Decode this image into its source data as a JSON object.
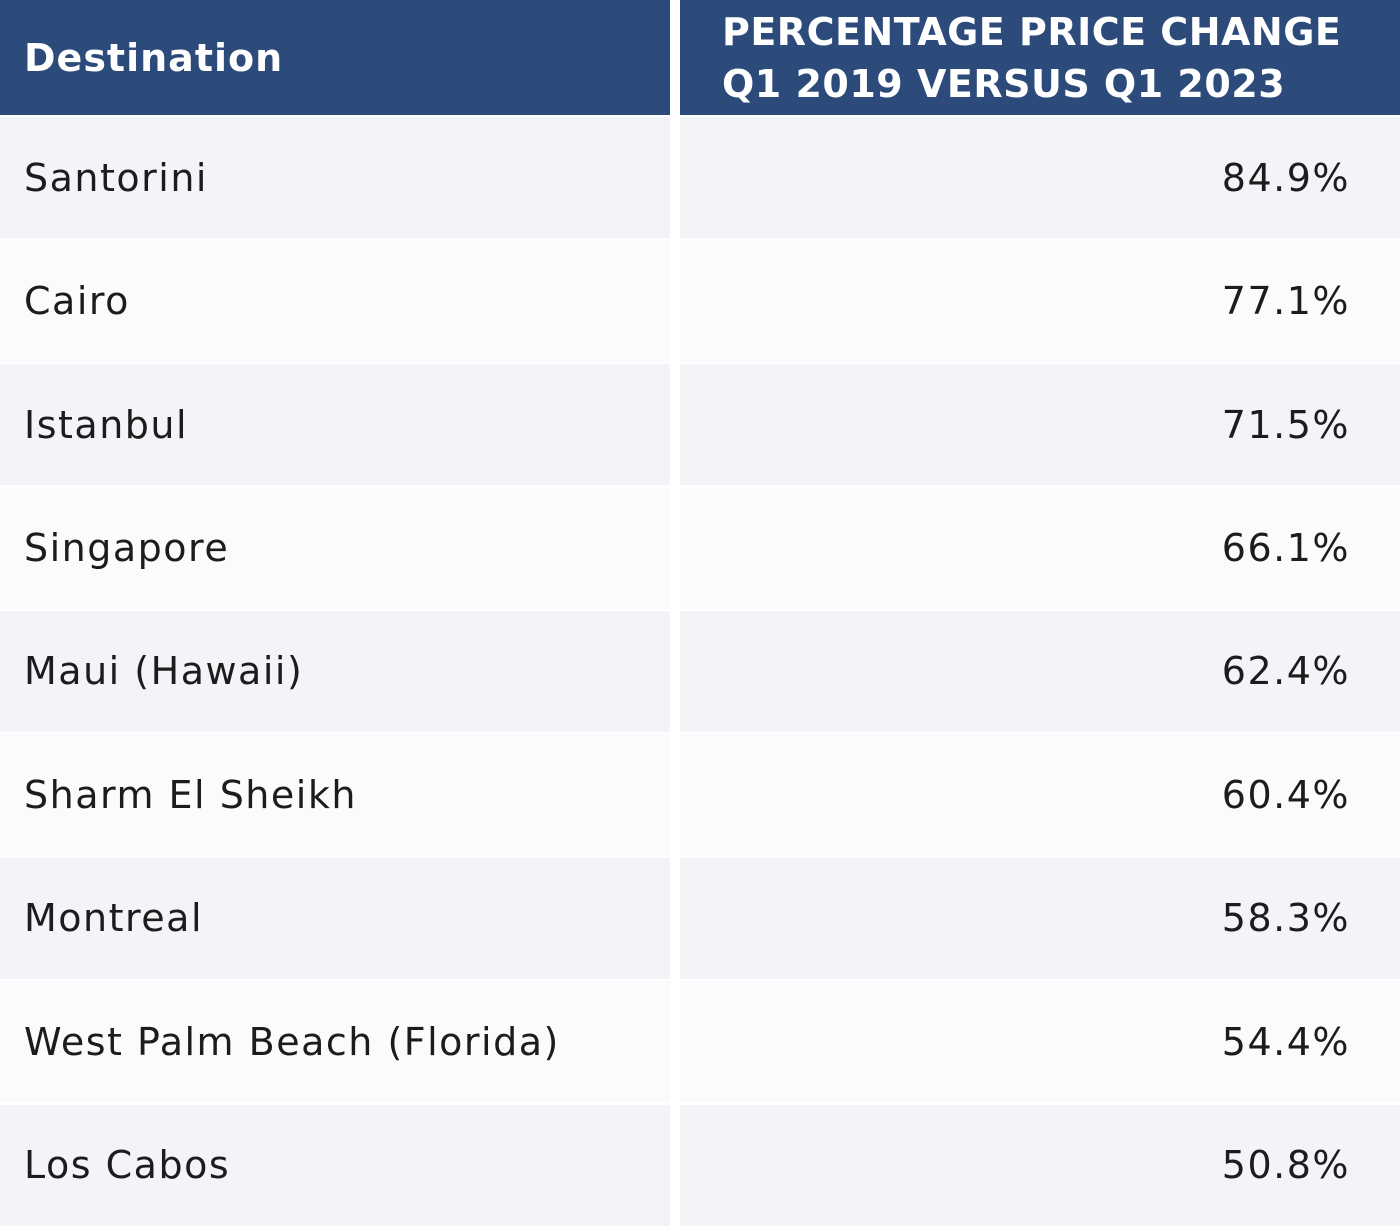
{
  "chart_data": {
    "type": "table",
    "columns": [
      "Destination",
      "PERCENTAGE PRICE CHANGE Q1 2019 VERSUS Q1 2023"
    ],
    "header": {
      "destination": "Destination",
      "change_line1": "PERCENTAGE PRICE CHANGE",
      "change_line2": "Q1 2019 VERSUS Q1 2023"
    },
    "rows": [
      {
        "destination": "Santorini",
        "change": "84.9%"
      },
      {
        "destination": "Cairo",
        "change": "77.1%"
      },
      {
        "destination": "Istanbul",
        "change": "71.5%"
      },
      {
        "destination": "Singapore",
        "change": "66.1%"
      },
      {
        "destination": "Maui (Hawaii)",
        "change": "62.4%"
      },
      {
        "destination": "Sharm El Sheikh",
        "change": "60.4%"
      },
      {
        "destination": "Montreal",
        "change": "58.3%"
      },
      {
        "destination": "West Palm Beach (Florida)",
        "change": "54.4%"
      },
      {
        "destination": "Los Cabos",
        "change": "50.8%"
      }
    ],
    "values": [
      84.9,
      77.1,
      71.5,
      66.1,
      62.4,
      60.4,
      58.3,
      54.4,
      50.8
    ]
  },
  "colors": {
    "header_bg": "#2c4b7b",
    "header_text": "#ffffff",
    "row_odd": "#f3f4f8",
    "row_even": "#fafbfd",
    "text": "#1c1c1c"
  }
}
